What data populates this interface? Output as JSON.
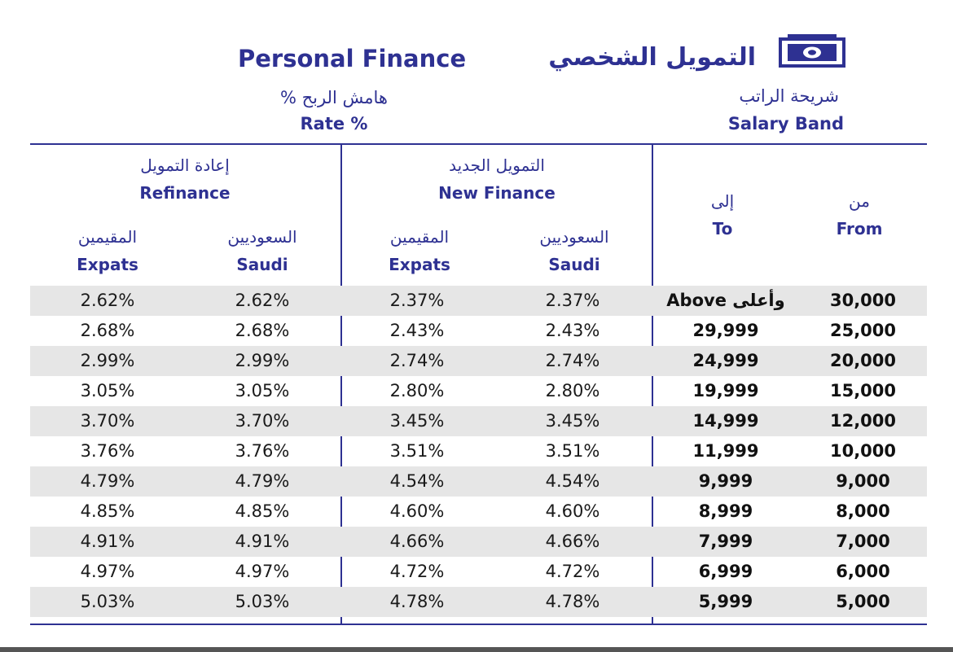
{
  "header": {
    "title_en": "Personal Finance",
    "title_ar": "التمويل الشخصي",
    "icon": "money-icon",
    "rate_label_ar": "هامش الربح %",
    "rate_label_en": "Rate %",
    "band_label_ar": "شريحة الراتب",
    "band_label_en": "Salary Band"
  },
  "table": {
    "groups": {
      "refinance": {
        "ar": "إعادة التمويل",
        "en": "Refinance"
      },
      "new_finance": {
        "ar": "التمويل الجديد",
        "en": "New Finance"
      }
    },
    "columns": {
      "ref_expats": {
        "ar": "المقيمين",
        "en": "Expats"
      },
      "ref_saudi": {
        "ar": "السعوديين",
        "en": "Saudi"
      },
      "new_expats": {
        "ar": "المقيمين",
        "en": "Expats"
      },
      "new_saudi": {
        "ar": "السعوديين",
        "en": "Saudi"
      },
      "to": {
        "ar": "إلى",
        "en": "To"
      },
      "from": {
        "ar": "من",
        "en": "From"
      }
    },
    "rows": [
      {
        "ref_expats": "2.62%",
        "ref_saudi": "2.62%",
        "new_expats": "2.37%",
        "new_saudi": "2.37%",
        "to": "Above وأعلى",
        "from": "30,000"
      },
      {
        "ref_expats": "2.68%",
        "ref_saudi": "2.68%",
        "new_expats": "2.43%",
        "new_saudi": "2.43%",
        "to": "29,999",
        "from": "25,000"
      },
      {
        "ref_expats": "2.99%",
        "ref_saudi": "2.99%",
        "new_expats": "2.74%",
        "new_saudi": "2.74%",
        "to": "24,999",
        "from": "20,000"
      },
      {
        "ref_expats": "3.05%",
        "ref_saudi": "3.05%",
        "new_expats": "2.80%",
        "new_saudi": "2.80%",
        "to": "19,999",
        "from": "15,000"
      },
      {
        "ref_expats": "3.70%",
        "ref_saudi": "3.70%",
        "new_expats": "3.45%",
        "new_saudi": "3.45%",
        "to": "14,999",
        "from": "12,000"
      },
      {
        "ref_expats": "3.76%",
        "ref_saudi": "3.76%",
        "new_expats": "3.51%",
        "new_saudi": "3.51%",
        "to": "11,999",
        "from": "10,000"
      },
      {
        "ref_expats": "4.79%",
        "ref_saudi": "4.79%",
        "new_expats": "4.54%",
        "new_saudi": "4.54%",
        "to": "9,999",
        "from": "9,000"
      },
      {
        "ref_expats": "4.85%",
        "ref_saudi": "4.85%",
        "new_expats": "4.60%",
        "new_saudi": "4.60%",
        "to": "8,999",
        "from": "8,000"
      },
      {
        "ref_expats": "4.91%",
        "ref_saudi": "4.91%",
        "new_expats": "4.66%",
        "new_saudi": "4.66%",
        "to": "7,999",
        "from": "7,000"
      },
      {
        "ref_expats": "4.97%",
        "ref_saudi": "4.97%",
        "new_expats": "4.72%",
        "new_saudi": "4.72%",
        "to": "6,999",
        "from": "6,000"
      },
      {
        "ref_expats": "5.03%",
        "ref_saudi": "5.03%",
        "new_expats": "4.78%",
        "new_saudi": "4.78%",
        "to": "5,999",
        "from": "5,000"
      }
    ]
  },
  "colors": {
    "brand": "#2e3192",
    "row_shade": "#e6e6e6",
    "text": "#1a1a1a"
  }
}
